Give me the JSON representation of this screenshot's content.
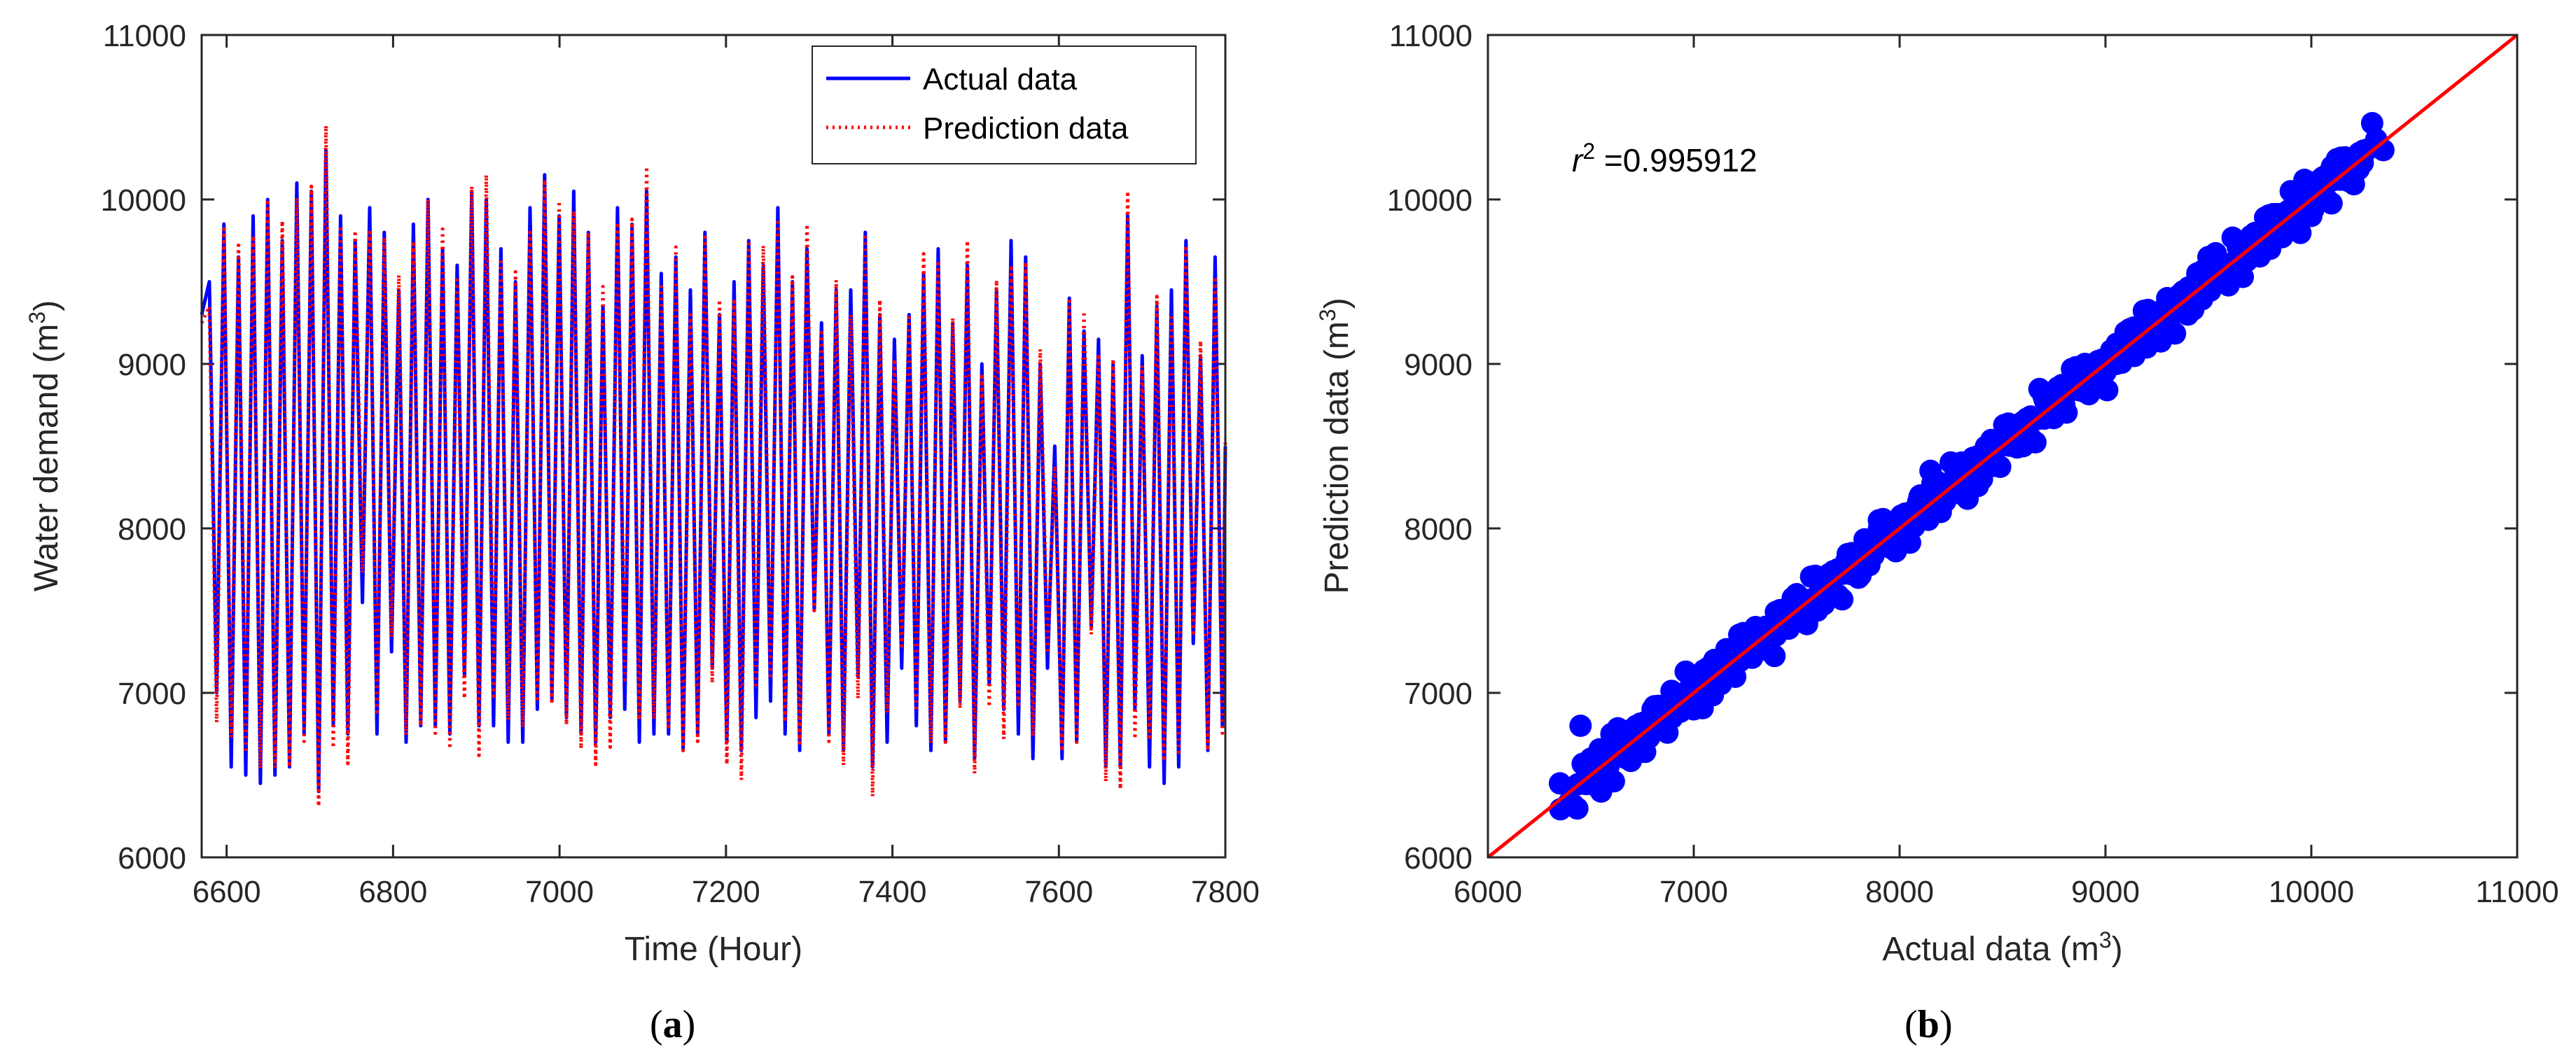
{
  "chart_data": [
    {
      "type": "line",
      "panel_label": "a",
      "xlabel": "Time (Hour)",
      "ylabel": "Water demand (m",
      "ylabel_sup": "3",
      "ylabel_close": ")",
      "xlim": [
        6570,
        7800
      ],
      "ylim": [
        6000,
        11000
      ],
      "xticks": [
        6600,
        6800,
        7000,
        7200,
        7400,
        7600,
        7800
      ],
      "yticks": [
        6000,
        7000,
        8000,
        9000,
        10000,
        11000
      ],
      "legend_position": "top-right",
      "series": [
        {
          "name": "Actual data",
          "color": "#0000ff",
          "style": "solid",
          "approx_pattern": "daily cycle (period 24 h), peaks 8300-10300, troughs 6400-7700",
          "peaks": [
            9500,
            9850,
            9650,
            9900,
            10000,
            9750,
            10100,
            10050,
            10300,
            9900,
            9750,
            9950,
            9800,
            9450,
            9850,
            10000,
            9700,
            9600,
            10050,
            10000,
            9700,
            9500,
            9950,
            10150,
            9900,
            10050,
            9800,
            9350,
            9950,
            9850,
            10050,
            9550,
            9650,
            9450,
            9800,
            9300,
            9500,
            9750,
            9600,
            9950,
            9500,
            9700,
            9250,
            9450,
            9450,
            9800,
            9300,
            9150,
            9300,
            9550,
            9700,
            9250,
            9600,
            9000,
            9450,
            9750,
            9650,
            9000,
            8500,
            9400,
            9200,
            9150,
            9000,
            9900,
            9050,
            9350,
            9450,
            9750,
            9050,
            9650
          ],
          "troughs": [
            7000,
            6550,
            6500,
            6450,
            6500,
            6550,
            6750,
            6400,
            6800,
            6750,
            7550,
            6750,
            7250,
            6700,
            6800,
            6800,
            6750,
            7100,
            6800,
            6800,
            6700,
            6700,
            6900,
            6950,
            6850,
            6750,
            6700,
            6850,
            6900,
            6700,
            6750,
            6750,
            6650,
            6750,
            7150,
            6700,
            6650,
            6850,
            6950,
            6750,
            6650,
            7500,
            6750,
            6650,
            7100,
            6550,
            6700,
            7150,
            6800,
            6650,
            6700,
            6950,
            6600,
            7050,
            6900,
            6750,
            6600,
            7150,
            6600,
            6700,
            7400,
            6550,
            6550,
            6900,
            6550,
            6450,
            6550,
            7300,
            6650,
            6800
          ]
        },
        {
          "name": "Prediction data",
          "color": "#ff0000",
          "style": "dotted",
          "approx_pattern": "tracks actual data closely (r^2 = 0.995912)"
        }
      ]
    },
    {
      "type": "scatter",
      "panel_label": "b",
      "xlabel": "Actual data (m",
      "xlabel_sup": "3",
      "xlabel_close": ")",
      "ylabel": "Prediction data (m",
      "ylabel_sup": "3",
      "ylabel_close": ")",
      "xlim": [
        6000,
        11000
      ],
      "ylim": [
        6000,
        11000
      ],
      "xticks": [
        6000,
        7000,
        8000,
        9000,
        10000,
        11000
      ],
      "yticks": [
        6000,
        7000,
        8000,
        9000,
        10000,
        11000
      ],
      "point_color": "#0000ff",
      "fit_line": {
        "from": [
          6000,
          6000
        ],
        "to": [
          11000,
          11000
        ],
        "color": "#ff0000"
      },
      "annotation": {
        "symbol": "r",
        "sup": "2",
        "text": " =0.995912"
      },
      "approx_points": [
        [
          6350,
          6450
        ],
        [
          6450,
          6800
        ],
        [
          6500,
          6600
        ],
        [
          6550,
          6400
        ],
        [
          6600,
          6750
        ],
        [
          6700,
          6650
        ],
        [
          6800,
          6900
        ],
        [
          6900,
          7000
        ],
        [
          7000,
          6900
        ],
        [
          7100,
          7200
        ],
        [
          7200,
          7100
        ],
        [
          7300,
          7400
        ],
        [
          7400,
          7350
        ],
        [
          7500,
          7600
        ],
        [
          7600,
          7500
        ],
        [
          7700,
          7750
        ],
        [
          7800,
          7700
        ],
        [
          7900,
          8000
        ],
        [
          8000,
          7900
        ],
        [
          8100,
          8200
        ],
        [
          8150,
          8350
        ],
        [
          8200,
          8100
        ],
        [
          8300,
          8400
        ],
        [
          8400,
          8300
        ],
        [
          8500,
          8550
        ],
        [
          8600,
          8500
        ],
        [
          8700,
          8800
        ],
        [
          8800,
          8750
        ],
        [
          8900,
          9000
        ],
        [
          9000,
          8950
        ],
        [
          9100,
          9150
        ],
        [
          9200,
          9100
        ],
        [
          9300,
          9400
        ],
        [
          9400,
          9300
        ],
        [
          9500,
          9650
        ],
        [
          9600,
          9550
        ],
        [
          9700,
          9750
        ],
        [
          9800,
          9700
        ],
        [
          9900,
          10050
        ],
        [
          10000,
          9900
        ],
        [
          10100,
          10200
        ],
        [
          10200,
          10150
        ],
        [
          10350,
          10300
        ]
      ]
    }
  ],
  "captions": {
    "a": "a",
    "b": "b"
  }
}
